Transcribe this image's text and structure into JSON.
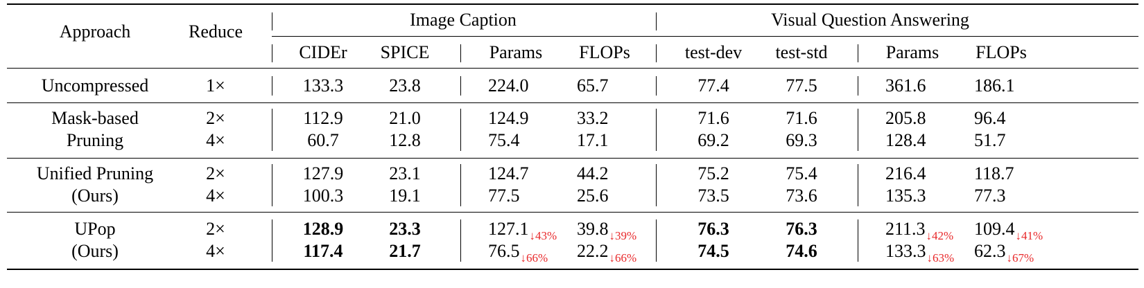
{
  "table": {
    "headers": {
      "approach": "Approach",
      "reduce": "Reduce",
      "image_caption": "Image Caption",
      "vqa": "Visual Question Answering",
      "sub": [
        "CIDEr",
        "SPICE",
        "Params",
        "FLOPs",
        "test-dev",
        "test-std",
        "Params",
        "FLOPs"
      ]
    },
    "rows": [
      {
        "approach": [
          "Uncompressed"
        ],
        "lines": [
          {
            "reduce": "1×",
            "cider": "133.3",
            "spice": "23.8",
            "ic_params": "224.0",
            "ic_flops": "65.7",
            "test_dev": "77.4",
            "test_std": "77.5",
            "vqa_params": "361.6",
            "vqa_flops": "186.1"
          }
        ]
      },
      {
        "approach": [
          "Mask-based",
          "Pruning"
        ],
        "lines": [
          {
            "reduce": "2×",
            "cider": "112.9",
            "spice": "21.0",
            "ic_params": "124.9",
            "ic_flops": "33.2",
            "test_dev": "71.6",
            "test_std": "71.6",
            "vqa_params": "205.8",
            "vqa_flops": "96.4"
          },
          {
            "reduce": "4×",
            "cider": "60.7",
            "spice": "12.8",
            "ic_params": "75.4",
            "ic_flops": "17.1",
            "test_dev": "69.2",
            "test_std": "69.3",
            "vqa_params": "128.4",
            "vqa_flops": "51.7"
          }
        ]
      },
      {
        "approach": [
          "Unified Pruning",
          "(Ours)"
        ],
        "lines": [
          {
            "reduce": "2×",
            "cider": "127.9",
            "spice": "23.1",
            "ic_params": "124.7",
            "ic_flops": "44.2",
            "test_dev": "75.2",
            "test_std": "75.4",
            "vqa_params": "216.4",
            "vqa_flops": "118.7"
          },
          {
            "reduce": "4×",
            "cider": "100.3",
            "spice": "19.1",
            "ic_params": "77.5",
            "ic_flops": "25.6",
            "test_dev": "73.5",
            "test_std": "73.6",
            "vqa_params": "135.3",
            "vqa_flops": "77.3"
          }
        ]
      },
      {
        "approach": [
          "UPop",
          "(Ours)"
        ],
        "lines": [
          {
            "reduce": "2×",
            "cider": "128.9",
            "spice": "23.3",
            "ic_params": "127.1",
            "ic_params_pct": "↓43%",
            "ic_flops": "39.8",
            "ic_flops_pct": "↓39%",
            "test_dev": "76.3",
            "test_std": "76.3",
            "vqa_params": "211.3",
            "vqa_params_pct": "↓42%",
            "vqa_flops": "109.4",
            "vqa_flops_pct": "↓41%"
          },
          {
            "reduce": "4×",
            "cider": "117.4",
            "spice": "21.7",
            "ic_params": "76.5",
            "ic_params_pct": "↓66%",
            "ic_flops": "22.2",
            "ic_flops_pct": "↓66%",
            "test_dev": "74.5",
            "test_std": "74.6",
            "vqa_params": "133.3",
            "vqa_params_pct": "↓63%",
            "vqa_flops": "62.3",
            "vqa_flops_pct": "↓67%"
          }
        ]
      }
    ]
  }
}
